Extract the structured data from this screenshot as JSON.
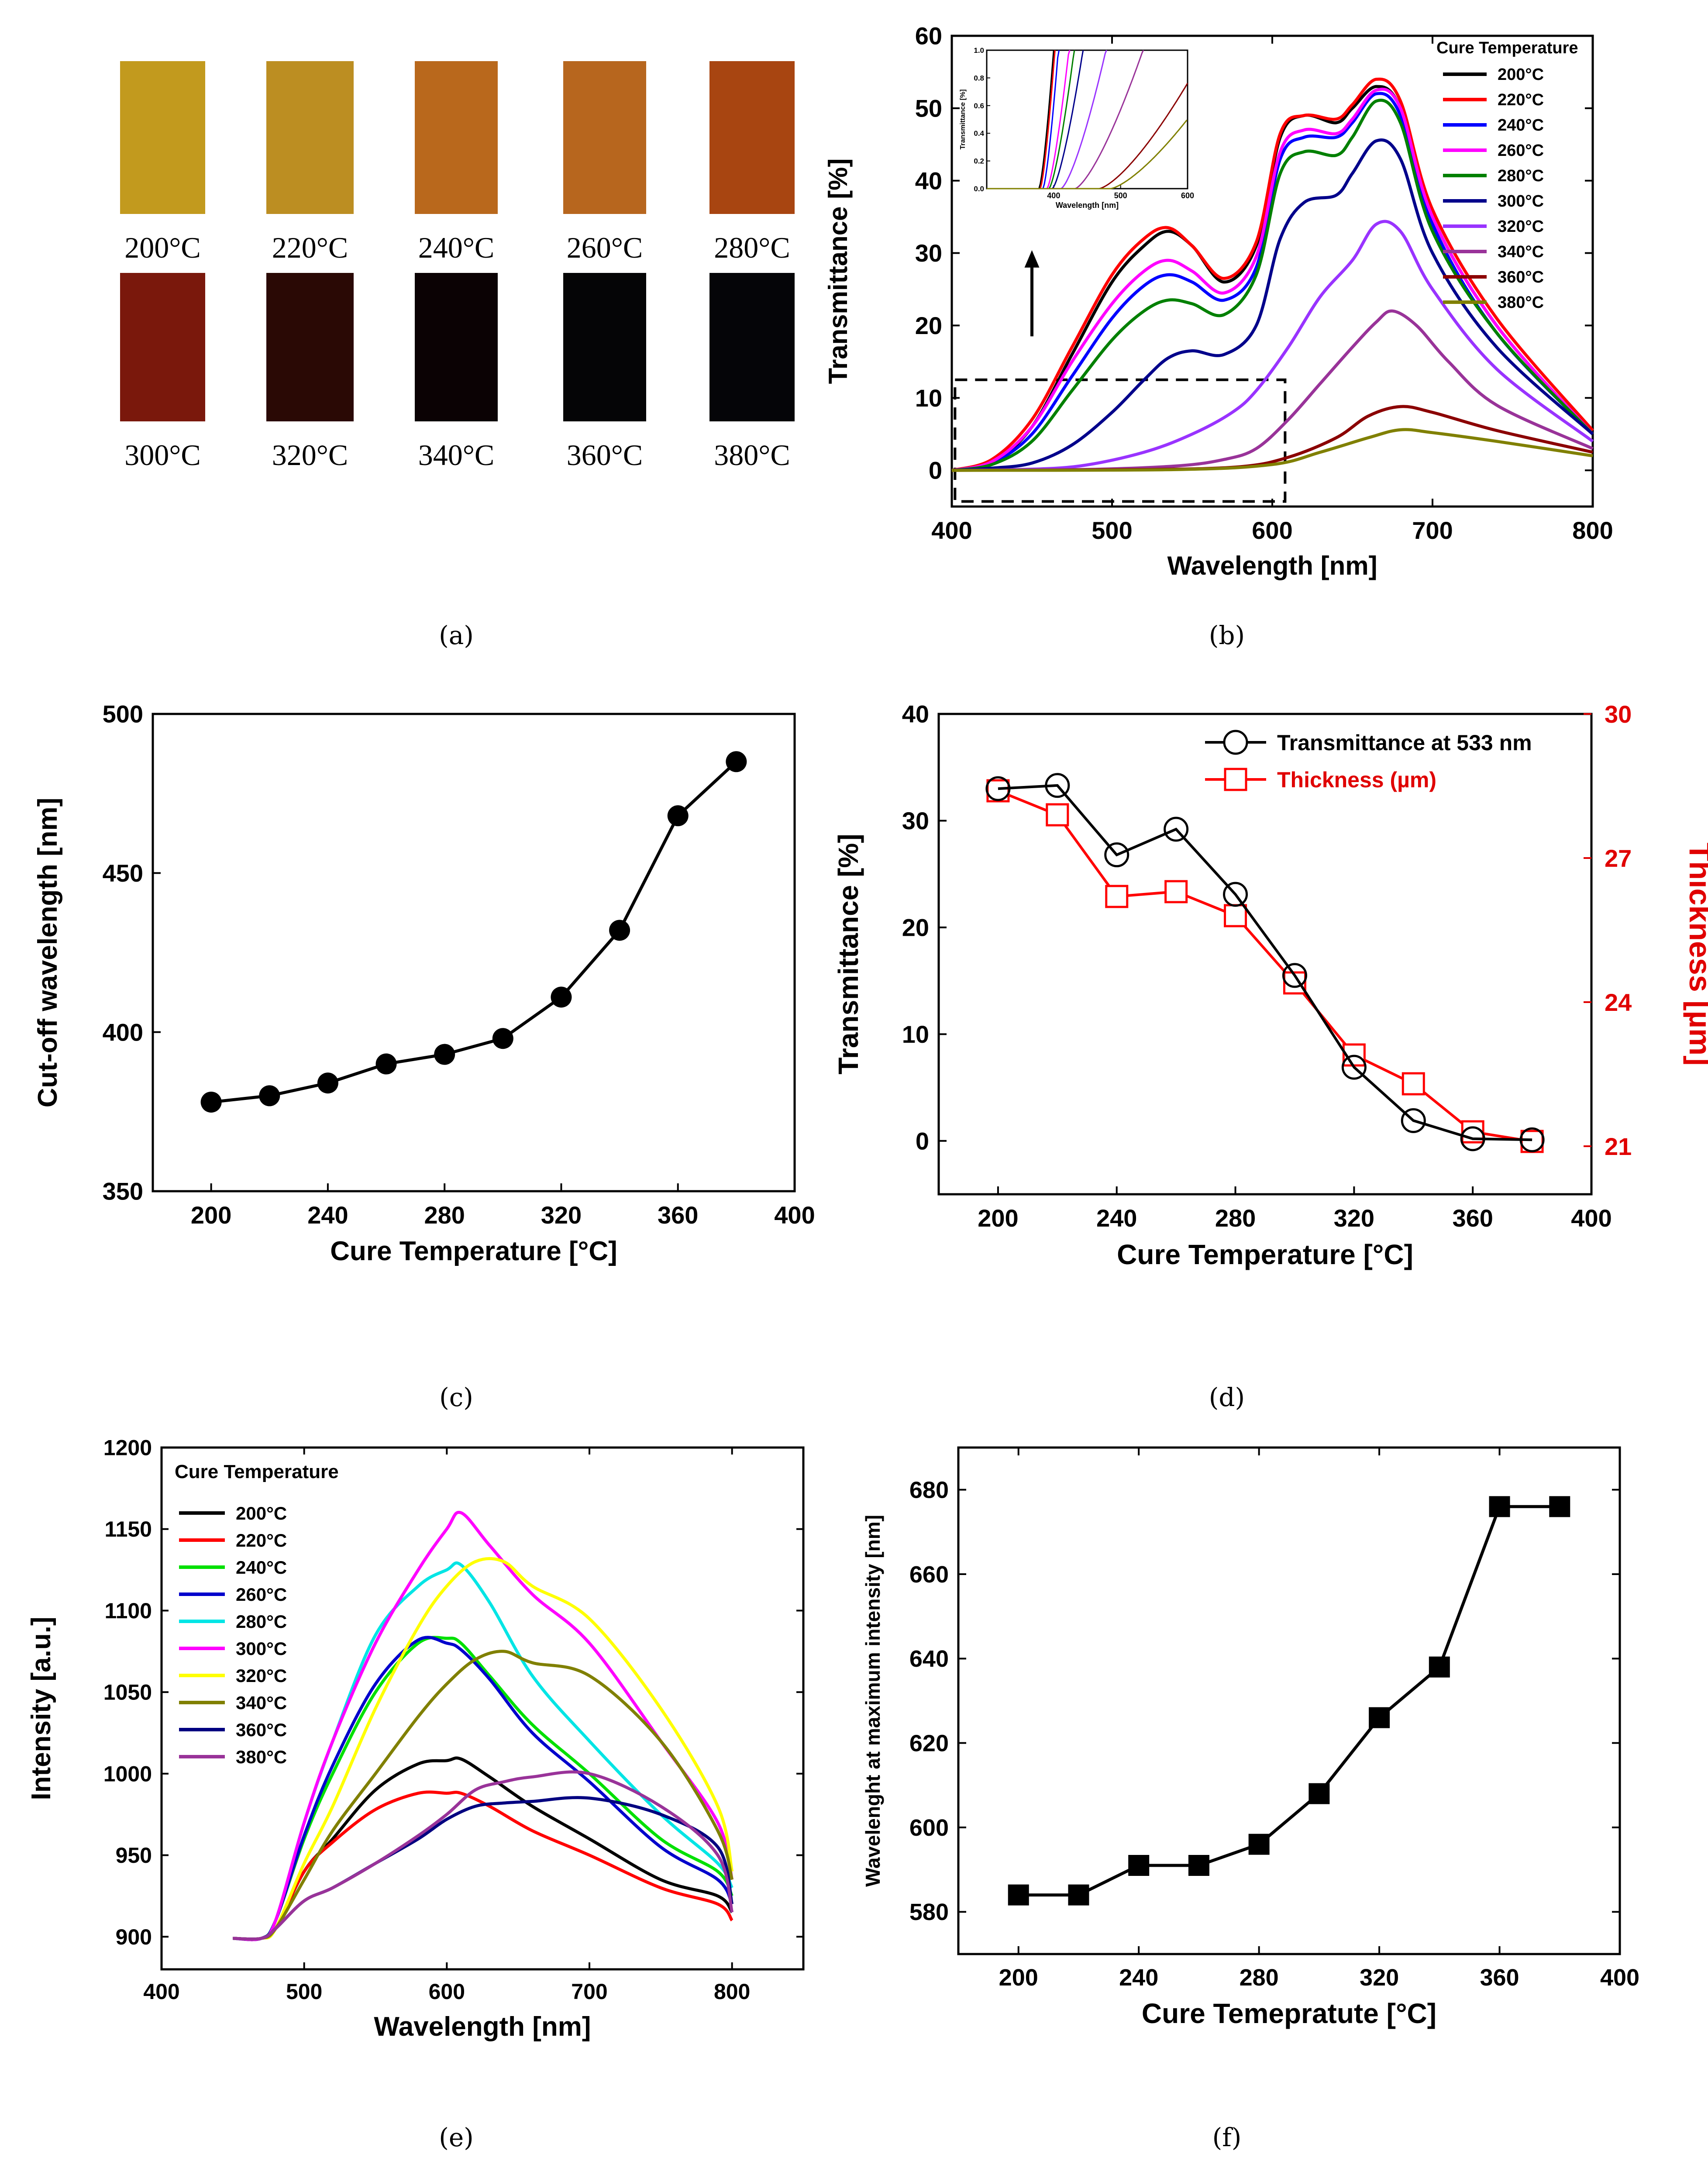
{
  "captions": [
    "(a)",
    "(b)",
    "(c)",
    "(d)",
    "(e)",
    "(f)"
  ],
  "swatches": {
    "items": [
      {
        "label": "200°C",
        "color": "#C29A1E"
      },
      {
        "label": "220°C",
        "color": "#BC8E22"
      },
      {
        "label": "240°C",
        "color": "#B9681C"
      },
      {
        "label": "260°C",
        "color": "#B7661E"
      },
      {
        "label": "280°C",
        "color": "#A84511"
      },
      {
        "label": "300°C",
        "color": "#7A180C"
      },
      {
        "label": "320°C",
        "color": "#2A0905"
      },
      {
        "label": "340°C",
        "color": "#0B0204"
      },
      {
        "label": "360°C",
        "color": "#050506"
      },
      {
        "label": "380°C",
        "color": "#050508"
      }
    ]
  },
  "chart_data": [
    {
      "id": "b",
      "type": "line",
      "xlabel": "Wavelength [nm]",
      "ylabel": "Transmittance [%]",
      "xlim": [
        400,
        800
      ],
      "ylim": [
        -5,
        60
      ],
      "xticks": [
        400,
        500,
        600,
        700,
        800
      ],
      "yticks": [
        0,
        10,
        20,
        30,
        40,
        50,
        60
      ],
      "legend_title": "Cure Temperature",
      "series": [
        {
          "name": "200°C",
          "color": "#000000",
          "x": [
            400,
            425,
            450,
            475,
            500,
            520,
            535,
            550,
            570,
            590,
            605,
            620,
            640,
            650,
            665,
            680,
            700,
            740,
            800
          ],
          "y": [
            0,
            1,
            6,
            16,
            26,
            31,
            33,
            31,
            26,
            31,
            46,
            49,
            48,
            50,
            53,
            50,
            35,
            20,
            5
          ]
        },
        {
          "name": "220°C",
          "color": "#FF0000",
          "x": [
            400,
            425,
            450,
            475,
            500,
            520,
            535,
            550,
            570,
            590,
            605,
            620,
            640,
            650,
            665,
            680,
            700,
            740,
            800
          ],
          "y": [
            0,
            1.5,
            7,
            17,
            27,
            32,
            33.5,
            31,
            26.5,
            31.5,
            46.5,
            49,
            48.5,
            50.5,
            54,
            51,
            36,
            21,
            5.5
          ]
        },
        {
          "name": "240°C",
          "color": "#0000FF",
          "x": [
            400,
            425,
            450,
            475,
            500,
            520,
            535,
            550,
            570,
            590,
            605,
            620,
            640,
            650,
            665,
            680,
            700,
            740,
            800
          ],
          "y": [
            0,
            1,
            5,
            13,
            21,
            25.5,
            27,
            26,
            23.5,
            28,
            43,
            46,
            46,
            48,
            52,
            49,
            34,
            19,
            5
          ]
        },
        {
          "name": "260°C",
          "color": "#FF00FF",
          "x": [
            400,
            425,
            450,
            475,
            500,
            520,
            535,
            550,
            570,
            590,
            605,
            620,
            640,
            650,
            665,
            680,
            700,
            740,
            800
          ],
          "y": [
            0,
            1.2,
            6,
            15,
            23,
            27.5,
            29,
            27.5,
            24.5,
            29.5,
            44,
            47,
            46.5,
            48.5,
            52.5,
            50,
            35,
            20,
            5
          ]
        },
        {
          "name": "280°C",
          "color": "#008000",
          "x": [
            400,
            425,
            450,
            475,
            500,
            520,
            535,
            550,
            570,
            590,
            605,
            620,
            640,
            650,
            665,
            680,
            700,
            740,
            800
          ],
          "y": [
            0,
            0.8,
            4,
            11,
            18,
            22,
            23.5,
            23,
            21.5,
            27,
            41,
            44,
            43.5,
            46,
            51,
            48,
            33,
            19,
            5
          ]
        },
        {
          "name": "300°C",
          "color": "#00008B",
          "x": [
            400,
            425,
            450,
            475,
            500,
            520,
            535,
            550,
            570,
            590,
            605,
            620,
            640,
            650,
            665,
            680,
            700,
            740,
            800
          ],
          "y": [
            0,
            0.3,
            1,
            3.5,
            8,
            12.5,
            15.5,
            16.5,
            16,
            20,
            32,
            37,
            38,
            41,
            45.5,
            43,
            30,
            17,
            5
          ]
        },
        {
          "name": "320°C",
          "color": "#9933FF",
          "x": [
            400,
            440,
            480,
            520,
            550,
            575,
            590,
            610,
            630,
            650,
            665,
            680,
            700,
            740,
            800
          ],
          "y": [
            0,
            0.1,
            0.6,
            2.5,
            5,
            8,
            11,
            17,
            24,
            29,
            34,
            33,
            25,
            14,
            4
          ]
        },
        {
          "name": "340°C",
          "color": "#993399",
          "x": [
            400,
            480,
            540,
            570,
            590,
            610,
            630,
            650,
            665,
            675,
            690,
            710,
            740,
            800
          ],
          "y": [
            0,
            0.1,
            0.6,
            1.5,
            3,
            7,
            12,
            17,
            20.5,
            22,
            20,
            15,
            9,
            3
          ]
        },
        {
          "name": "360°C",
          "color": "#8B0000",
          "x": [
            400,
            520,
            580,
            610,
            640,
            660,
            680,
            700,
            740,
            800
          ],
          "y": [
            0,
            0.1,
            0.5,
            1.8,
            4.5,
            7.5,
            8.8,
            8,
            5.5,
            2.5
          ]
        },
        {
          "name": "380°C",
          "color": "#808000",
          "x": [
            400,
            540,
            600,
            630,
            660,
            680,
            700,
            740,
            800
          ],
          "y": [
            0,
            0.1,
            0.8,
            2.5,
            4.5,
            5.6,
            5.2,
            4,
            2
          ]
        }
      ],
      "inset": {
        "xlabel": "Wavelength [nm]",
        "ylabel": "Transmittance [%]",
        "xlim": [
          300,
          600
        ],
        "ylim": [
          0,
          1.0
        ],
        "xticks": [
          400,
          500,
          600
        ],
        "yticks": [
          0.0,
          0.2,
          0.4,
          0.6,
          0.8,
          1.0
        ],
        "cutoffs": [
          378,
          380,
          384,
          390,
          393,
          398,
          411,
          432,
          468,
          485
        ]
      },
      "arrow": "up"
    },
    {
      "id": "c",
      "type": "line",
      "xlabel": "Cure Temperature [°C]",
      "ylabel": "Cut-off wavelength [nm]",
      "xlim": [
        180,
        400
      ],
      "ylim": [
        350,
        500
      ],
      "xticks": [
        200,
        240,
        280,
        320,
        360,
        400
      ],
      "yticks": [
        350,
        400,
        450,
        500
      ],
      "x": [
        200,
        220,
        240,
        260,
        280,
        300,
        320,
        340,
        360,
        380
      ],
      "values": [
        378,
        380,
        384,
        390,
        393,
        398,
        411,
        432,
        468,
        485
      ]
    },
    {
      "id": "d",
      "type": "line",
      "xlabel": "Cure Temperature [°C]",
      "ylabel": "Transmittance [%]",
      "y2label": "Thickness [µm]",
      "xlim": [
        180,
        400
      ],
      "ylim": [
        -5,
        40
      ],
      "y2lim": [
        20,
        30
      ],
      "xticks": [
        200,
        240,
        280,
        320,
        360,
        400
      ],
      "yticks": [
        0,
        10,
        20,
        30,
        40
      ],
      "y2ticks": [
        21,
        24,
        27,
        30
      ],
      "x": [
        200,
        220,
        240,
        260,
        280,
        300,
        320,
        340,
        360,
        380
      ],
      "series": [
        {
          "name": "Transmittance at 533 nm",
          "color": "#000000",
          "marker": "circle",
          "values": [
            33,
            33.3,
            26.8,
            29.2,
            23.1,
            15.5,
            6.9,
            1.9,
            0.2,
            0.1
          ]
        },
        {
          "name": "Thickness (µm)",
          "color": "#FF0000",
          "marker": "square",
          "axis": "right",
          "values": [
            28.4,
            27.9,
            26.2,
            26.3,
            25.8,
            24.4,
            22.9,
            22.3,
            21.3,
            21.1
          ]
        }
      ]
    },
    {
      "id": "e",
      "type": "line",
      "xlabel": "Wavelength [nm]",
      "ylabel": "Intensity [a.u.]",
      "xlim": [
        400,
        850
      ],
      "ylim": [
        880,
        1200
      ],
      "xticks": [
        400,
        500,
        600,
        700,
        800
      ],
      "yticks": [
        900,
        950,
        1000,
        1050,
        1100,
        1150,
        1200
      ],
      "legend_title": "Cure Temperature",
      "series": [
        {
          "name": "200°C",
          "color": "#000000",
          "x": [
            450,
            470,
            480,
            500,
            520,
            550,
            580,
            600,
            610,
            630,
            660,
            700,
            750,
            790,
            800
          ],
          "y": [
            899,
            899,
            905,
            940,
            960,
            990,
            1006,
            1008,
            1009,
            998,
            980,
            960,
            935,
            925,
            915
          ]
        },
        {
          "name": "220°C",
          "color": "#FF0000",
          "x": [
            450,
            470,
            480,
            500,
            520,
            550,
            580,
            600,
            610,
            630,
            660,
            700,
            750,
            790,
            800
          ],
          "y": [
            899,
            899,
            905,
            940,
            958,
            978,
            988,
            988,
            988,
            980,
            965,
            950,
            930,
            920,
            910
          ]
        },
        {
          "name": "240°C",
          "color": "#00E000",
          "x": [
            450,
            470,
            480,
            500,
            520,
            550,
            580,
            600,
            610,
            630,
            660,
            700,
            750,
            790,
            800
          ],
          "y": [
            899,
            899,
            910,
            960,
            1000,
            1050,
            1080,
            1083,
            1080,
            1060,
            1030,
            1000,
            960,
            940,
            925
          ]
        },
        {
          "name": "260°C",
          "color": "#0000CC",
          "x": [
            450,
            470,
            480,
            500,
            520,
            550,
            580,
            600,
            610,
            630,
            660,
            700,
            750,
            790,
            800
          ],
          "y": [
            899,
            899,
            910,
            962,
            1005,
            1055,
            1082,
            1080,
            1076,
            1058,
            1025,
            995,
            955,
            935,
            920
          ]
        },
        {
          "name": "280°C",
          "color": "#00E5E5",
          "x": [
            450,
            470,
            480,
            500,
            520,
            550,
            580,
            600,
            610,
            630,
            660,
            700,
            750,
            790,
            800
          ],
          "y": [
            899,
            899,
            910,
            970,
            1020,
            1085,
            1115,
            1125,
            1128,
            1105,
            1060,
            1020,
            975,
            945,
            930
          ]
        },
        {
          "name": "300°C",
          "color": "#FF00FF",
          "x": [
            450,
            470,
            480,
            500,
            520,
            550,
            580,
            600,
            610,
            630,
            660,
            700,
            750,
            790,
            800
          ],
          "y": [
            899,
            899,
            910,
            970,
            1020,
            1080,
            1125,
            1150,
            1160,
            1140,
            1110,
            1080,
            1020,
            970,
            935
          ]
        },
        {
          "name": "320°C",
          "color": "#FFFF00",
          "x": [
            450,
            470,
            480,
            500,
            520,
            550,
            580,
            600,
            620,
            640,
            660,
            700,
            750,
            790,
            800
          ],
          "y": [
            899,
            899,
            905,
            945,
            980,
            1040,
            1090,
            1115,
            1130,
            1130,
            1115,
            1095,
            1040,
            980,
            940
          ]
        },
        {
          "name": "340°C",
          "color": "#808000",
          "x": [
            450,
            470,
            480,
            500,
            520,
            550,
            580,
            600,
            620,
            640,
            660,
            700,
            750,
            790,
            800
          ],
          "y": [
            899,
            899,
            905,
            935,
            965,
            1000,
            1035,
            1055,
            1070,
            1075,
            1068,
            1060,
            1020,
            965,
            935
          ]
        },
        {
          "name": "360°C",
          "color": "#000080",
          "x": [
            450,
            470,
            480,
            500,
            520,
            550,
            580,
            600,
            620,
            640,
            660,
            700,
            750,
            790,
            800
          ],
          "y": [
            899,
            899,
            905,
            922,
            930,
            945,
            960,
            972,
            980,
            982,
            983,
            985,
            975,
            955,
            920
          ]
        },
        {
          "name": "380°C",
          "color": "#993399",
          "x": [
            450,
            470,
            480,
            500,
            520,
            550,
            580,
            600,
            620,
            640,
            660,
            700,
            750,
            790,
            800
          ],
          "y": [
            899,
            899,
            905,
            922,
            930,
            945,
            962,
            975,
            990,
            995,
            998,
            1000,
            980,
            950,
            915
          ]
        }
      ]
    },
    {
      "id": "f",
      "type": "line",
      "xlabel": "Cure Temepratute [°C]",
      "ylabel": "Wavelenght at maximum intensity [nm]",
      "xlim": [
        180,
        400
      ],
      "ylim": [
        570,
        690
      ],
      "xticks": [
        200,
        240,
        280,
        320,
        360,
        400
      ],
      "yticks": [
        580,
        600,
        620,
        640,
        660,
        680
      ],
      "x": [
        200,
        220,
        240,
        260,
        280,
        300,
        320,
        340,
        360,
        380
      ],
      "values": [
        584,
        584,
        591,
        591,
        596,
        608,
        626,
        638,
        676,
        676
      ]
    }
  ]
}
